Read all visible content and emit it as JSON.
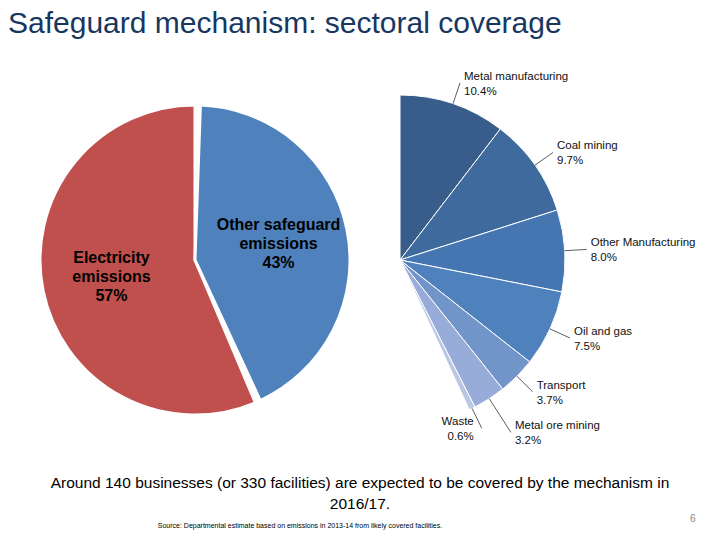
{
  "chart_data": [
    {
      "type": "pie",
      "title": "Safeguard mechanism: sectoral coverage",
      "categories": [
        "Electricity emissions",
        "Other safeguard emissions"
      ],
      "values": [
        57,
        43
      ],
      "value_labels": [
        "57%",
        "43%"
      ],
      "colors": [
        "#c0504d",
        "#4f81bd"
      ],
      "data_labels": true,
      "annotations": [
        "Around 140 businesses (or 330 facilities) are expected to be covered by the mechanism in 2016/17.",
        "Source: Departmental estimate based on emissions in 2013-14 from likely covered facilities.",
        "6"
      ]
    },
    {
      "type": "pie",
      "categories": [
        "Metal manufacturing",
        "Coal mining",
        "Other Manufacturing",
        "Oil and gas",
        "Transport",
        "Metal ore mining",
        "Waste"
      ],
      "values": [
        10.4,
        9.7,
        8.0,
        7.5,
        3.7,
        3.2,
        0.6
      ],
      "value_labels": [
        "10.4%",
        "9.7%",
        "8.0%",
        "7.5%",
        "3.7%",
        "3.2%",
        "0.6%"
      ],
      "colors": [
        "#385d8a",
        "#3e6a9e",
        "#4676b2",
        "#4f81bd",
        "#7194c9",
        "#97acd8",
        "#b9c7e5"
      ],
      "data_labels": true
    }
  ]
}
